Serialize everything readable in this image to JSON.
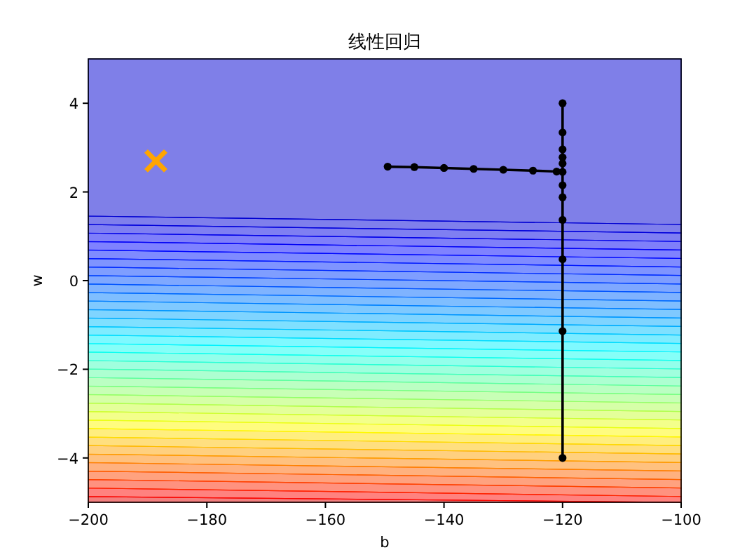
{
  "chart_data": {
    "type": "line",
    "title": "线性回归",
    "xlabel": "b",
    "ylabel": "w",
    "xlim": [
      -200,
      -100
    ],
    "xticks": [
      -200,
      -180,
      -160,
      -140,
      -120,
      -100
    ],
    "ylim": [
      -5,
      5
    ],
    "yticks": [
      -4,
      -2,
      0,
      2,
      4
    ],
    "grid": false,
    "series": [
      {
        "type": "line",
        "color": "#000000",
        "marker": "circle",
        "x": [
          -120,
          -120,
          -120,
          -120,
          -120,
          -120,
          -120,
          -120,
          -120,
          -120,
          -120,
          -120,
          -121,
          -125,
          -130,
          -135,
          -140,
          -145,
          -149.5
        ],
        "values": [
          -4,
          4,
          -1.14,
          3.34,
          0.48,
          2.96,
          1.37,
          2.78,
          1.88,
          2.64,
          2.15,
          2.45,
          2.46,
          2.48,
          2.5,
          2.52,
          2.54,
          2.56,
          2.57
        ]
      },
      {
        "type": "scatter",
        "color": "#ffa500",
        "marker": "cross",
        "x": [
          -188.6
        ],
        "values": [
          2.7
        ]
      }
    ]
  }
}
